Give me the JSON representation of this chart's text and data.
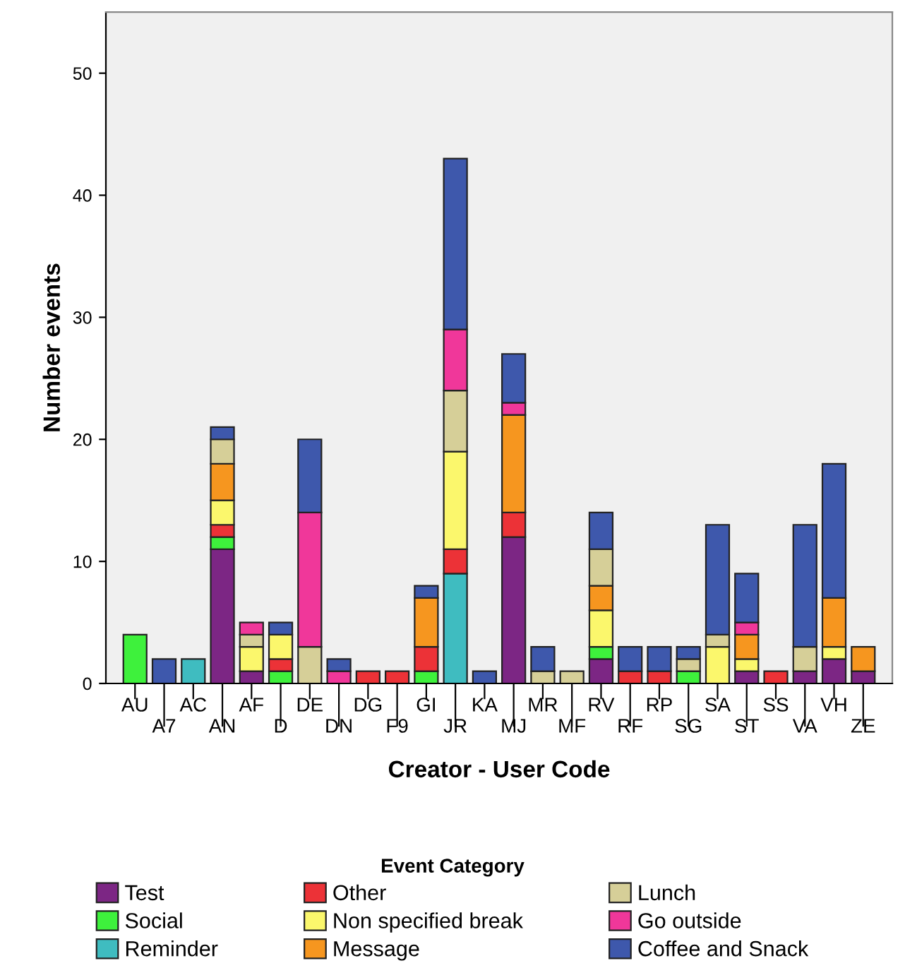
{
  "chart_data": {
    "type": "bar",
    "stacked": true,
    "xlabel": "Creator - User Code",
    "ylabel": "Number events",
    "legend_title": "Event Category",
    "legend": "bottom",
    "grid": false,
    "categories": [
      "AU",
      "A7",
      "AC",
      "AN",
      "AF",
      "D",
      "DE",
      "DN",
      "DG",
      "F9",
      "GI",
      "JR",
      "KA",
      "MJ",
      "MR",
      "MF",
      "RV",
      "RF",
      "RP",
      "SG",
      "SA",
      "ST",
      "SS",
      "VA",
      "VH",
      "ZE"
    ],
    "ylim": [
      0,
      55
    ],
    "yticks": [
      0,
      10,
      20,
      30,
      40,
      50
    ],
    "series": [
      {
        "name": "Test",
        "color": "#7c2684",
        "values": [
          0,
          0,
          0,
          11,
          1,
          0,
          0,
          0,
          0,
          0,
          0,
          0,
          0,
          12,
          0,
          0,
          2,
          0,
          0,
          0,
          0,
          1,
          0,
          1,
          2,
          1
        ]
      },
      {
        "name": "Social",
        "color": "#3ef13c",
        "values": [
          4,
          0,
          0,
          1,
          0,
          1,
          0,
          0,
          0,
          0,
          1,
          0,
          0,
          0,
          0,
          0,
          1,
          0,
          0,
          1,
          0,
          0,
          0,
          0,
          0,
          0
        ]
      },
      {
        "name": "Reminder",
        "color": "#3fbcc0",
        "values": [
          0,
          0,
          2,
          0,
          0,
          0,
          0,
          0,
          0,
          0,
          0,
          9,
          0,
          0,
          0,
          0,
          0,
          0,
          0,
          0,
          0,
          0,
          0,
          0,
          0,
          0
        ]
      },
      {
        "name": "Other",
        "color": "#ec3237",
        "values": [
          0,
          0,
          0,
          1,
          0,
          1,
          0,
          0,
          1,
          1,
          2,
          2,
          0,
          2,
          0,
          0,
          0,
          1,
          1,
          0,
          0,
          0,
          1,
          0,
          0,
          0
        ]
      },
      {
        "name": "Non specified break",
        "color": "#fbf76c",
        "values": [
          0,
          0,
          0,
          2,
          2,
          2,
          0,
          0,
          0,
          0,
          0,
          8,
          0,
          0,
          0,
          0,
          3,
          0,
          0,
          0,
          3,
          1,
          0,
          0,
          1,
          0
        ]
      },
      {
        "name": "Message",
        "color": "#f6961f",
        "values": [
          0,
          0,
          0,
          3,
          0,
          0,
          0,
          0,
          0,
          0,
          4,
          0,
          0,
          8,
          0,
          0,
          2,
          0,
          0,
          0,
          0,
          2,
          0,
          0,
          4,
          2
        ]
      },
      {
        "name": "Lunch",
        "color": "#d6cf98",
        "values": [
          0,
          0,
          0,
          2,
          1,
          0,
          3,
          0,
          0,
          0,
          0,
          5,
          0,
          0,
          1,
          1,
          3,
          0,
          0,
          1,
          1,
          0,
          0,
          2,
          0,
          0
        ]
      },
      {
        "name": "Go outside",
        "color": "#f0379a",
        "values": [
          0,
          0,
          0,
          0,
          1,
          0,
          11,
          1,
          0,
          0,
          0,
          5,
          0,
          1,
          0,
          0,
          0,
          0,
          0,
          0,
          0,
          1,
          0,
          0,
          0,
          0
        ]
      },
      {
        "name": "Coffee and Snack",
        "color": "#3e58ac",
        "values": [
          0,
          2,
          0,
          1,
          0,
          1,
          6,
          1,
          0,
          0,
          1,
          14,
          1,
          4,
          2,
          0,
          3,
          2,
          2,
          1,
          9,
          4,
          0,
          10,
          11,
          0
        ]
      }
    ]
  }
}
